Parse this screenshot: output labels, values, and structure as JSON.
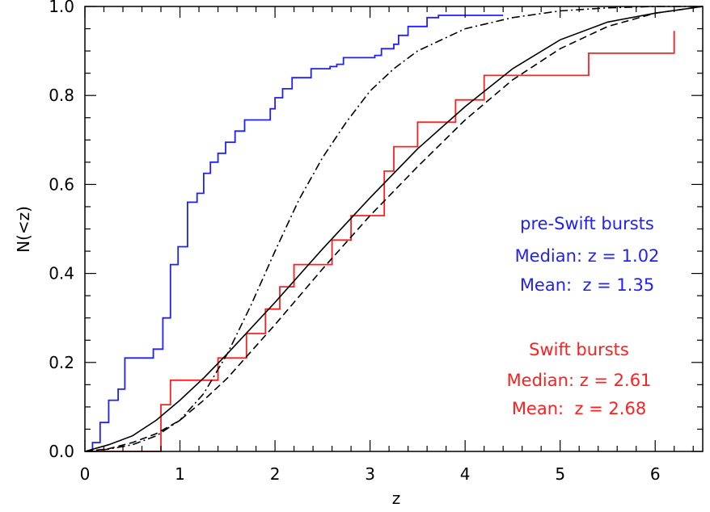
{
  "chart_data": {
    "type": "line",
    "title": "",
    "xlabel": "z",
    "ylabel": "N(<z)",
    "xlim": [
      0,
      6.5
    ],
    "ylim": [
      0,
      1.0
    ],
    "x_ticks": [
      "0",
      "1",
      "2",
      "3",
      "4",
      "5",
      "6"
    ],
    "y_ticks": [
      "0.0",
      "0.2",
      "0.4",
      "0.6",
      "0.8",
      "1.0"
    ],
    "grid": false,
    "colors": {
      "pre_swift": "#1f1fff",
      "swift": "#ff1f1f",
      "model": "#000000"
    },
    "series": [
      {
        "key": "pre_swift",
        "style": "step",
        "color": "#1f1fff",
        "x": [
          0.0,
          0.08,
          0.16,
          0.25,
          0.35,
          0.42,
          0.6,
          0.72,
          0.82,
          0.9,
          0.98,
          1.08,
          1.18,
          1.25,
          1.32,
          1.4,
          1.48,
          1.58,
          1.68,
          1.95,
          2.0,
          2.08,
          2.18,
          2.38,
          2.58,
          2.65,
          2.72,
          2.88,
          3.05,
          3.12,
          3.25,
          3.3,
          3.4,
          3.6,
          3.72,
          4.4
        ],
        "y": [
          0.0,
          0.02,
          0.065,
          0.115,
          0.14,
          0.21,
          0.21,
          0.23,
          0.3,
          0.42,
          0.46,
          0.56,
          0.58,
          0.625,
          0.65,
          0.67,
          0.695,
          0.72,
          0.745,
          0.77,
          0.795,
          0.815,
          0.84,
          0.86,
          0.865,
          0.87,
          0.885,
          0.885,
          0.89,
          0.905,
          0.915,
          0.935,
          0.955,
          0.975,
          0.98,
          0.98
        ]
      },
      {
        "key": "swift",
        "style": "step",
        "color": "#ff1f1f",
        "x": [
          0.0,
          0.6,
          0.8,
          0.9,
          1.4,
          1.7,
          1.9,
          2.05,
          2.2,
          2.6,
          2.8,
          3.15,
          3.25,
          3.5,
          3.9,
          4.2,
          5.3,
          6.2
        ],
        "y": [
          0.0,
          0.0,
          0.105,
          0.16,
          0.21,
          0.265,
          0.32,
          0.37,
          0.42,
          0.475,
          0.53,
          0.63,
          0.685,
          0.74,
          0.79,
          0.845,
          0.895,
          0.945
        ]
      },
      {
        "key": "model_solid",
        "style": "solid",
        "color": "#000000",
        "x": [
          0.0,
          0.25,
          0.5,
          0.75,
          1.0,
          1.25,
          1.5,
          2.0,
          2.5,
          3.0,
          3.5,
          4.0,
          4.5,
          5.0,
          5.5,
          6.0,
          6.5
        ],
        "y": [
          0.0,
          0.015,
          0.035,
          0.07,
          0.115,
          0.165,
          0.22,
          0.335,
          0.455,
          0.57,
          0.68,
          0.775,
          0.86,
          0.925,
          0.965,
          0.985,
          1.0
        ]
      },
      {
        "key": "model_dashed",
        "style": "dashed",
        "color": "#000000",
        "x": [
          0.0,
          0.25,
          0.5,
          0.75,
          1.0,
          1.25,
          1.5,
          2.0,
          2.5,
          3.0,
          3.5,
          4.0,
          4.5,
          5.0,
          5.5,
          6.0,
          6.5
        ],
        "y": [
          0.0,
          0.006,
          0.02,
          0.04,
          0.07,
          0.115,
          0.165,
          0.285,
          0.41,
          0.53,
          0.64,
          0.745,
          0.835,
          0.905,
          0.955,
          0.985,
          1.0
        ]
      },
      {
        "key": "model_dashdot",
        "style": "dashdot",
        "color": "#000000",
        "x": [
          0.0,
          0.25,
          0.5,
          0.75,
          1.0,
          1.25,
          1.5,
          1.75,
          2.0,
          2.25,
          2.5,
          2.75,
          3.0,
          3.25,
          3.5,
          4.0,
          4.5,
          5.0,
          5.5,
          6.0,
          6.5
        ],
        "y": [
          0.0,
          0.005,
          0.015,
          0.035,
          0.07,
          0.13,
          0.22,
          0.33,
          0.45,
          0.565,
          0.66,
          0.74,
          0.81,
          0.86,
          0.9,
          0.95,
          0.975,
          0.99,
          0.997,
          1.0,
          1.0
        ]
      }
    ],
    "annotations": {
      "pre_swift": {
        "heading": "pre-Swift bursts",
        "median": "Median: z = 1.02",
        "mean": "Mean:  z = 1.35",
        "color": "#1f1fff"
      },
      "swift": {
        "heading": "Swift bursts",
        "median": "Median: z = 2.61",
        "mean": "Mean:  z = 2.68",
        "color": "#ff1f1f"
      }
    }
  }
}
